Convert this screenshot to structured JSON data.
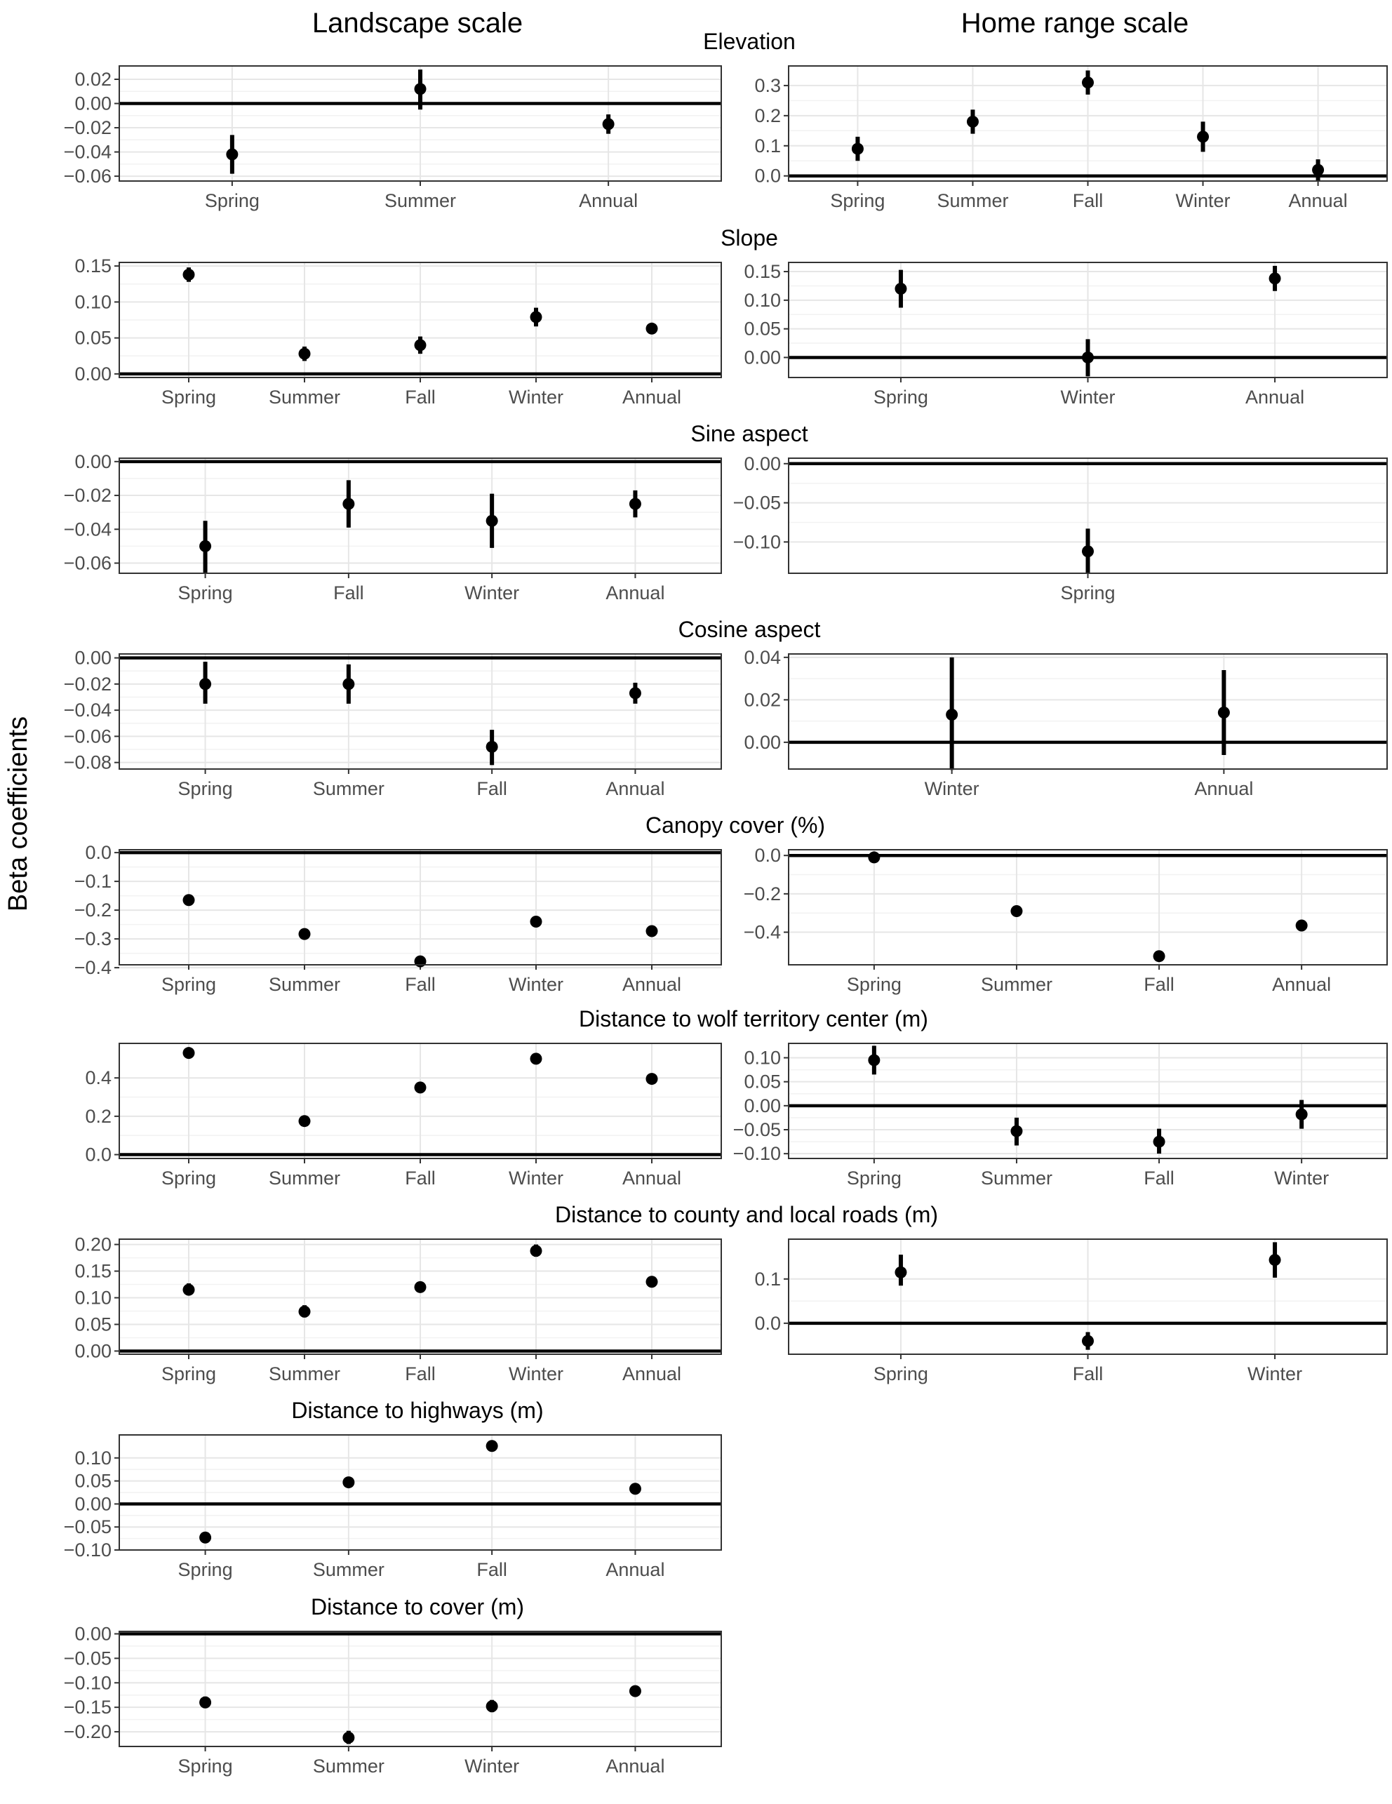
{
  "figure": {
    "col_titles": [
      "Landscape scale",
      "Home range scale"
    ],
    "ylabel": "Beta coefficients"
  },
  "chart_data": [
    {
      "type": "scatter",
      "panel": "elev-land",
      "column": "Landscape scale",
      "title": "Elevation",
      "categories": [
        "Spring",
        "Summer",
        "Annual"
      ],
      "points": [
        {
          "y": -0.042,
          "lo": -0.058,
          "hi": -0.026
        },
        {
          "y": 0.012,
          "lo": -0.005,
          "hi": 0.028
        },
        {
          "y": -0.017,
          "lo": -0.025,
          "hi": -0.009
        }
      ],
      "ylim": [
        -0.064,
        0.031
      ],
      "yticks": [
        -0.06,
        -0.04,
        -0.02,
        0.0,
        0.02
      ],
      "ytick_labels": [
        "−0.06",
        "−0.04",
        "−0.02",
        "0.00",
        "0.02"
      ],
      "zero_line": true,
      "grid": true
    },
    {
      "type": "scatter",
      "panel": "elev-home",
      "column": "Home range scale",
      "title": "",
      "categories": [
        "Spring",
        "Summer",
        "Fall",
        "Winter",
        "Annual"
      ],
      "points": [
        {
          "y": 0.09,
          "lo": 0.05,
          "hi": 0.13
        },
        {
          "y": 0.18,
          "lo": 0.14,
          "hi": 0.22
        },
        {
          "y": 0.31,
          "lo": 0.27,
          "hi": 0.35
        },
        {
          "y": 0.13,
          "lo": 0.08,
          "hi": 0.18
        },
        {
          "y": 0.02,
          "lo": -0.015,
          "hi": 0.055
        }
      ],
      "ylim": [
        -0.017,
        0.365
      ],
      "yticks": [
        0.0,
        0.1,
        0.2,
        0.3
      ],
      "ytick_labels": [
        "0.0",
        "0.1",
        "0.2",
        "0.3"
      ],
      "zero_line": true,
      "grid": true
    },
    {
      "type": "scatter",
      "panel": "slope-land",
      "column": "Landscape scale",
      "title": "Slope",
      "categories": [
        "Spring",
        "Summer",
        "Fall",
        "Winter",
        "Annual"
      ],
      "points": [
        {
          "y": 0.138,
          "lo": 0.128,
          "hi": 0.148
        },
        {
          "y": 0.028,
          "lo": 0.018,
          "hi": 0.038
        },
        {
          "y": 0.04,
          "lo": 0.028,
          "hi": 0.052
        },
        {
          "y": 0.079,
          "lo": 0.066,
          "hi": 0.092
        },
        {
          "y": 0.063,
          "lo": 0.057,
          "hi": 0.069
        }
      ],
      "ylim": [
        -0.005,
        0.155
      ],
      "yticks": [
        0.0,
        0.05,
        0.1,
        0.15
      ],
      "ytick_labels": [
        "0.00",
        "0.05",
        "0.10",
        "0.15"
      ],
      "zero_line": true,
      "grid": true
    },
    {
      "type": "scatter",
      "panel": "slope-home",
      "column": "Home range scale",
      "title": "",
      "categories": [
        "Spring",
        "Winter",
        "Annual"
      ],
      "points": [
        {
          "y": 0.12,
          "lo": 0.087,
          "hi": 0.153
        },
        {
          "y": 0.0,
          "lo": -0.033,
          "hi": 0.032
        },
        {
          "y": 0.138,
          "lo": 0.116,
          "hi": 0.16
        }
      ],
      "ylim": [
        -0.035,
        0.166
      ],
      "yticks": [
        0.0,
        0.05,
        0.1,
        0.15
      ],
      "ytick_labels": [
        "0.00",
        "0.05",
        "0.10",
        "0.15"
      ],
      "zero_line": true,
      "grid": true
    },
    {
      "type": "scatter",
      "panel": "sine-land",
      "column": "Landscape scale",
      "title": "Sine aspect",
      "categories": [
        "Spring",
        "Fall",
        "Winter",
        "Annual"
      ],
      "points": [
        {
          "y": -0.05,
          "lo": -0.066,
          "hi": -0.035
        },
        {
          "y": -0.025,
          "lo": -0.039,
          "hi": -0.011
        },
        {
          "y": -0.035,
          "lo": -0.051,
          "hi": -0.019
        },
        {
          "y": -0.025,
          "lo": -0.033,
          "hi": -0.017
        }
      ],
      "ylim": [
        -0.066,
        0.002
      ],
      "yticks": [
        -0.06,
        -0.04,
        -0.02,
        0.0
      ],
      "ytick_labels": [
        "−0.06",
        "−0.04",
        "−0.02",
        "0.00"
      ],
      "zero_line": true,
      "grid": true
    },
    {
      "type": "scatter",
      "panel": "sine-home",
      "column": "Home range scale",
      "title": "",
      "categories": [
        "Spring"
      ],
      "points": [
        {
          "y": -0.112,
          "lo": -0.14,
          "hi": -0.083
        }
      ],
      "ylim": [
        -0.14,
        0.007
      ],
      "yticks": [
        -0.1,
        -0.05,
        0.0
      ],
      "ytick_labels": [
        "−0.10",
        "−0.05",
        "0.00"
      ],
      "zero_line": true,
      "grid": true
    },
    {
      "type": "scatter",
      "panel": "cos-land",
      "column": "Landscape scale",
      "title": "Cosine aspect",
      "categories": [
        "Spring",
        "Summer",
        "Fall",
        "Annual"
      ],
      "points": [
        {
          "y": -0.02,
          "lo": -0.035,
          "hi": -0.003
        },
        {
          "y": -0.02,
          "lo": -0.035,
          "hi": -0.005
        },
        {
          "y": -0.068,
          "lo": -0.082,
          "hi": -0.055
        },
        {
          "y": -0.027,
          "lo": -0.035,
          "hi": -0.019
        }
      ],
      "ylim": [
        -0.085,
        0.003
      ],
      "yticks": [
        -0.08,
        -0.06,
        -0.04,
        -0.02,
        0.0
      ],
      "ytick_labels": [
        "−0.08",
        "−0.06",
        "−0.04",
        "−0.02",
        "0.00"
      ],
      "zero_line": true,
      "grid": true
    },
    {
      "type": "scatter",
      "panel": "cos-home",
      "column": "Home range scale",
      "title": "",
      "categories": [
        "Winter",
        "Annual"
      ],
      "points": [
        {
          "y": 0.013,
          "lo": -0.013,
          "hi": 0.04
        },
        {
          "y": 0.014,
          "lo": -0.006,
          "hi": 0.034
        }
      ],
      "ylim": [
        -0.0126,
        0.0416
      ],
      "yticks": [
        0.0,
        0.02,
        0.04
      ],
      "ytick_labels": [
        "0.00",
        "0.02",
        "0.04"
      ],
      "zero_line": true,
      "grid": true
    },
    {
      "type": "scatter",
      "panel": "canopy-land",
      "column": "Landscape scale",
      "title": "Canopy cover (%)",
      "categories": [
        "Spring",
        "Summer",
        "Fall",
        "Winter",
        "Annual"
      ],
      "points": [
        {
          "y": -0.165,
          "lo": -0.172,
          "hi": -0.158
        },
        {
          "y": -0.283,
          "lo": -0.29,
          "hi": -0.276
        },
        {
          "y": -0.378,
          "lo": -0.385,
          "hi": -0.371
        },
        {
          "y": -0.24,
          "lo": -0.246,
          "hi": -0.234
        },
        {
          "y": -0.273,
          "lo": -0.279,
          "hi": -0.267
        }
      ],
      "ylim": [
        -0.39,
        0.01
      ],
      "yticks": [
        -0.4,
        -0.3,
        -0.2,
        -0.1,
        0.0
      ],
      "ytick_labels": [
        "−0.4",
        "−0.3",
        "−0.2",
        "−0.1",
        "0.0"
      ],
      "zero_line": true,
      "grid": true
    },
    {
      "type": "scatter",
      "panel": "canopy-home",
      "column": "Home range scale",
      "title": "",
      "categories": [
        "Spring",
        "Summer",
        "Fall",
        "Annual"
      ],
      "points": [
        {
          "y": -0.01,
          "lo": -0.02,
          "hi": 0.0
        },
        {
          "y": -0.29,
          "lo": -0.31,
          "hi": -0.27
        },
        {
          "y": -0.525,
          "lo": -0.545,
          "hi": -0.505
        },
        {
          "y": -0.365,
          "lo": -0.375,
          "hi": -0.355
        }
      ],
      "ylim": [
        -0.57,
        0.03
      ],
      "yticks": [
        -0.4,
        -0.2,
        0.0
      ],
      "ytick_labels": [
        "−0.4",
        "−0.2",
        "0.0"
      ],
      "zero_line": true,
      "grid": true
    },
    {
      "type": "scatter",
      "panel": "wolf-land",
      "column": "Landscape scale",
      "title": "Distance to wolf territory center (m)",
      "categories": [
        "Spring",
        "Summer",
        "Fall",
        "Winter",
        "Annual"
      ],
      "points": [
        {
          "y": 0.53,
          "lo": 0.523,
          "hi": 0.537
        },
        {
          "y": 0.175,
          "lo": 0.168,
          "hi": 0.182
        },
        {
          "y": 0.35,
          "lo": 0.343,
          "hi": 0.357
        },
        {
          "y": 0.5,
          "lo": 0.493,
          "hi": 0.507
        },
        {
          "y": 0.395,
          "lo": 0.388,
          "hi": 0.402
        }
      ],
      "ylim": [
        -0.02,
        0.58
      ],
      "yticks": [
        0.0,
        0.2,
        0.4
      ],
      "ytick_labels": [
        "0.0",
        "0.2",
        "0.4"
      ],
      "zero_line": true,
      "grid": true
    },
    {
      "type": "scatter",
      "panel": "wolf-home",
      "column": "Home range scale",
      "title": "",
      "categories": [
        "Spring",
        "Summer",
        "Fall",
        "Winter"
      ],
      "points": [
        {
          "y": 0.095,
          "lo": 0.065,
          "hi": 0.125
        },
        {
          "y": -0.053,
          "lo": -0.083,
          "hi": -0.025
        },
        {
          "y": -0.075,
          "lo": -0.1,
          "hi": -0.048
        },
        {
          "y": -0.018,
          "lo": -0.048,
          "hi": 0.012
        }
      ],
      "ylim": [
        -0.11,
        0.13
      ],
      "yticks": [
        -0.1,
        -0.05,
        0.0,
        0.05,
        0.1
      ],
      "ytick_labels": [
        "−0.10",
        "−0.05",
        "0.00",
        "0.05",
        "0.10"
      ],
      "zero_line": true,
      "grid": true
    },
    {
      "type": "scatter",
      "panel": "roads-land",
      "column": "Landscape scale",
      "title": "Distance to county and local roads (m)",
      "categories": [
        "Spring",
        "Summer",
        "Fall",
        "Winter",
        "Annual"
      ],
      "points": [
        {
          "y": 0.115,
          "lo": 0.105,
          "hi": 0.127
        },
        {
          "y": 0.074,
          "lo": 0.063,
          "hi": 0.086
        },
        {
          "y": 0.12,
          "lo": 0.11,
          "hi": 0.13
        },
        {
          "y": 0.188,
          "lo": 0.177,
          "hi": 0.2
        },
        {
          "y": 0.13,
          "lo": 0.124,
          "hi": 0.136
        }
      ],
      "ylim": [
        -0.006,
        0.21
      ],
      "yticks": [
        0.0,
        0.05,
        0.1,
        0.15,
        0.2
      ],
      "ytick_labels": [
        "0.00",
        "0.05",
        "0.10",
        "0.15",
        "0.20"
      ],
      "zero_line": true,
      "grid": true
    },
    {
      "type": "scatter",
      "panel": "roads-home",
      "column": "Home range scale",
      "title": "",
      "categories": [
        "Spring",
        "Fall",
        "Winter"
      ],
      "points": [
        {
          "y": 0.115,
          "lo": 0.085,
          "hi": 0.155
        },
        {
          "y": -0.04,
          "lo": -0.06,
          "hi": -0.02
        },
        {
          "y": 0.143,
          "lo": 0.103,
          "hi": 0.183
        }
      ],
      "ylim": [
        -0.07,
        0.19
      ],
      "yticks": [
        0.0,
        0.1
      ],
      "ytick_labels": [
        "0.0",
        "0.1"
      ],
      "zero_line": true,
      "grid": true
    },
    {
      "type": "scatter",
      "panel": "hwy-land",
      "column": "Landscape scale",
      "title": "Distance to highways (m)",
      "categories": [
        "Spring",
        "Summer",
        "Fall",
        "Annual"
      ],
      "points": [
        {
          "y": -0.073,
          "lo": -0.082,
          "hi": -0.064
        },
        {
          "y": 0.047,
          "lo": 0.037,
          "hi": 0.057
        },
        {
          "y": 0.126,
          "lo": 0.118,
          "hi": 0.134
        },
        {
          "y": 0.033,
          "lo": 0.029,
          "hi": 0.037
        }
      ],
      "ylim": [
        -0.1,
        0.15
      ],
      "yticks": [
        -0.1,
        -0.05,
        0.0,
        0.05,
        0.1
      ],
      "ytick_labels": [
        "−0.10",
        "−0.05",
        "0.00",
        "0.05",
        "0.10"
      ],
      "zero_line": true,
      "grid": true
    },
    {
      "type": "scatter",
      "panel": "cover-land",
      "column": "Landscape scale",
      "title": "Distance to cover (m)",
      "categories": [
        "Spring",
        "Summer",
        "Winter",
        "Annual"
      ],
      "points": [
        {
          "y": -0.14,
          "lo": -0.152,
          "hi": -0.128
        },
        {
          "y": -0.212,
          "lo": -0.225,
          "hi": -0.198
        },
        {
          "y": -0.148,
          "lo": -0.16,
          "hi": -0.135
        },
        {
          "y": -0.117,
          "lo": -0.123,
          "hi": -0.111
        }
      ],
      "ylim": [
        -0.23,
        0.005
      ],
      "yticks": [
        -0.2,
        -0.15,
        -0.1,
        -0.05,
        0.0
      ],
      "ytick_labels": [
        "−0.20",
        "−0.15",
        "−0.10",
        "−0.05",
        "0.00"
      ],
      "zero_line": true,
      "grid": true
    }
  ]
}
